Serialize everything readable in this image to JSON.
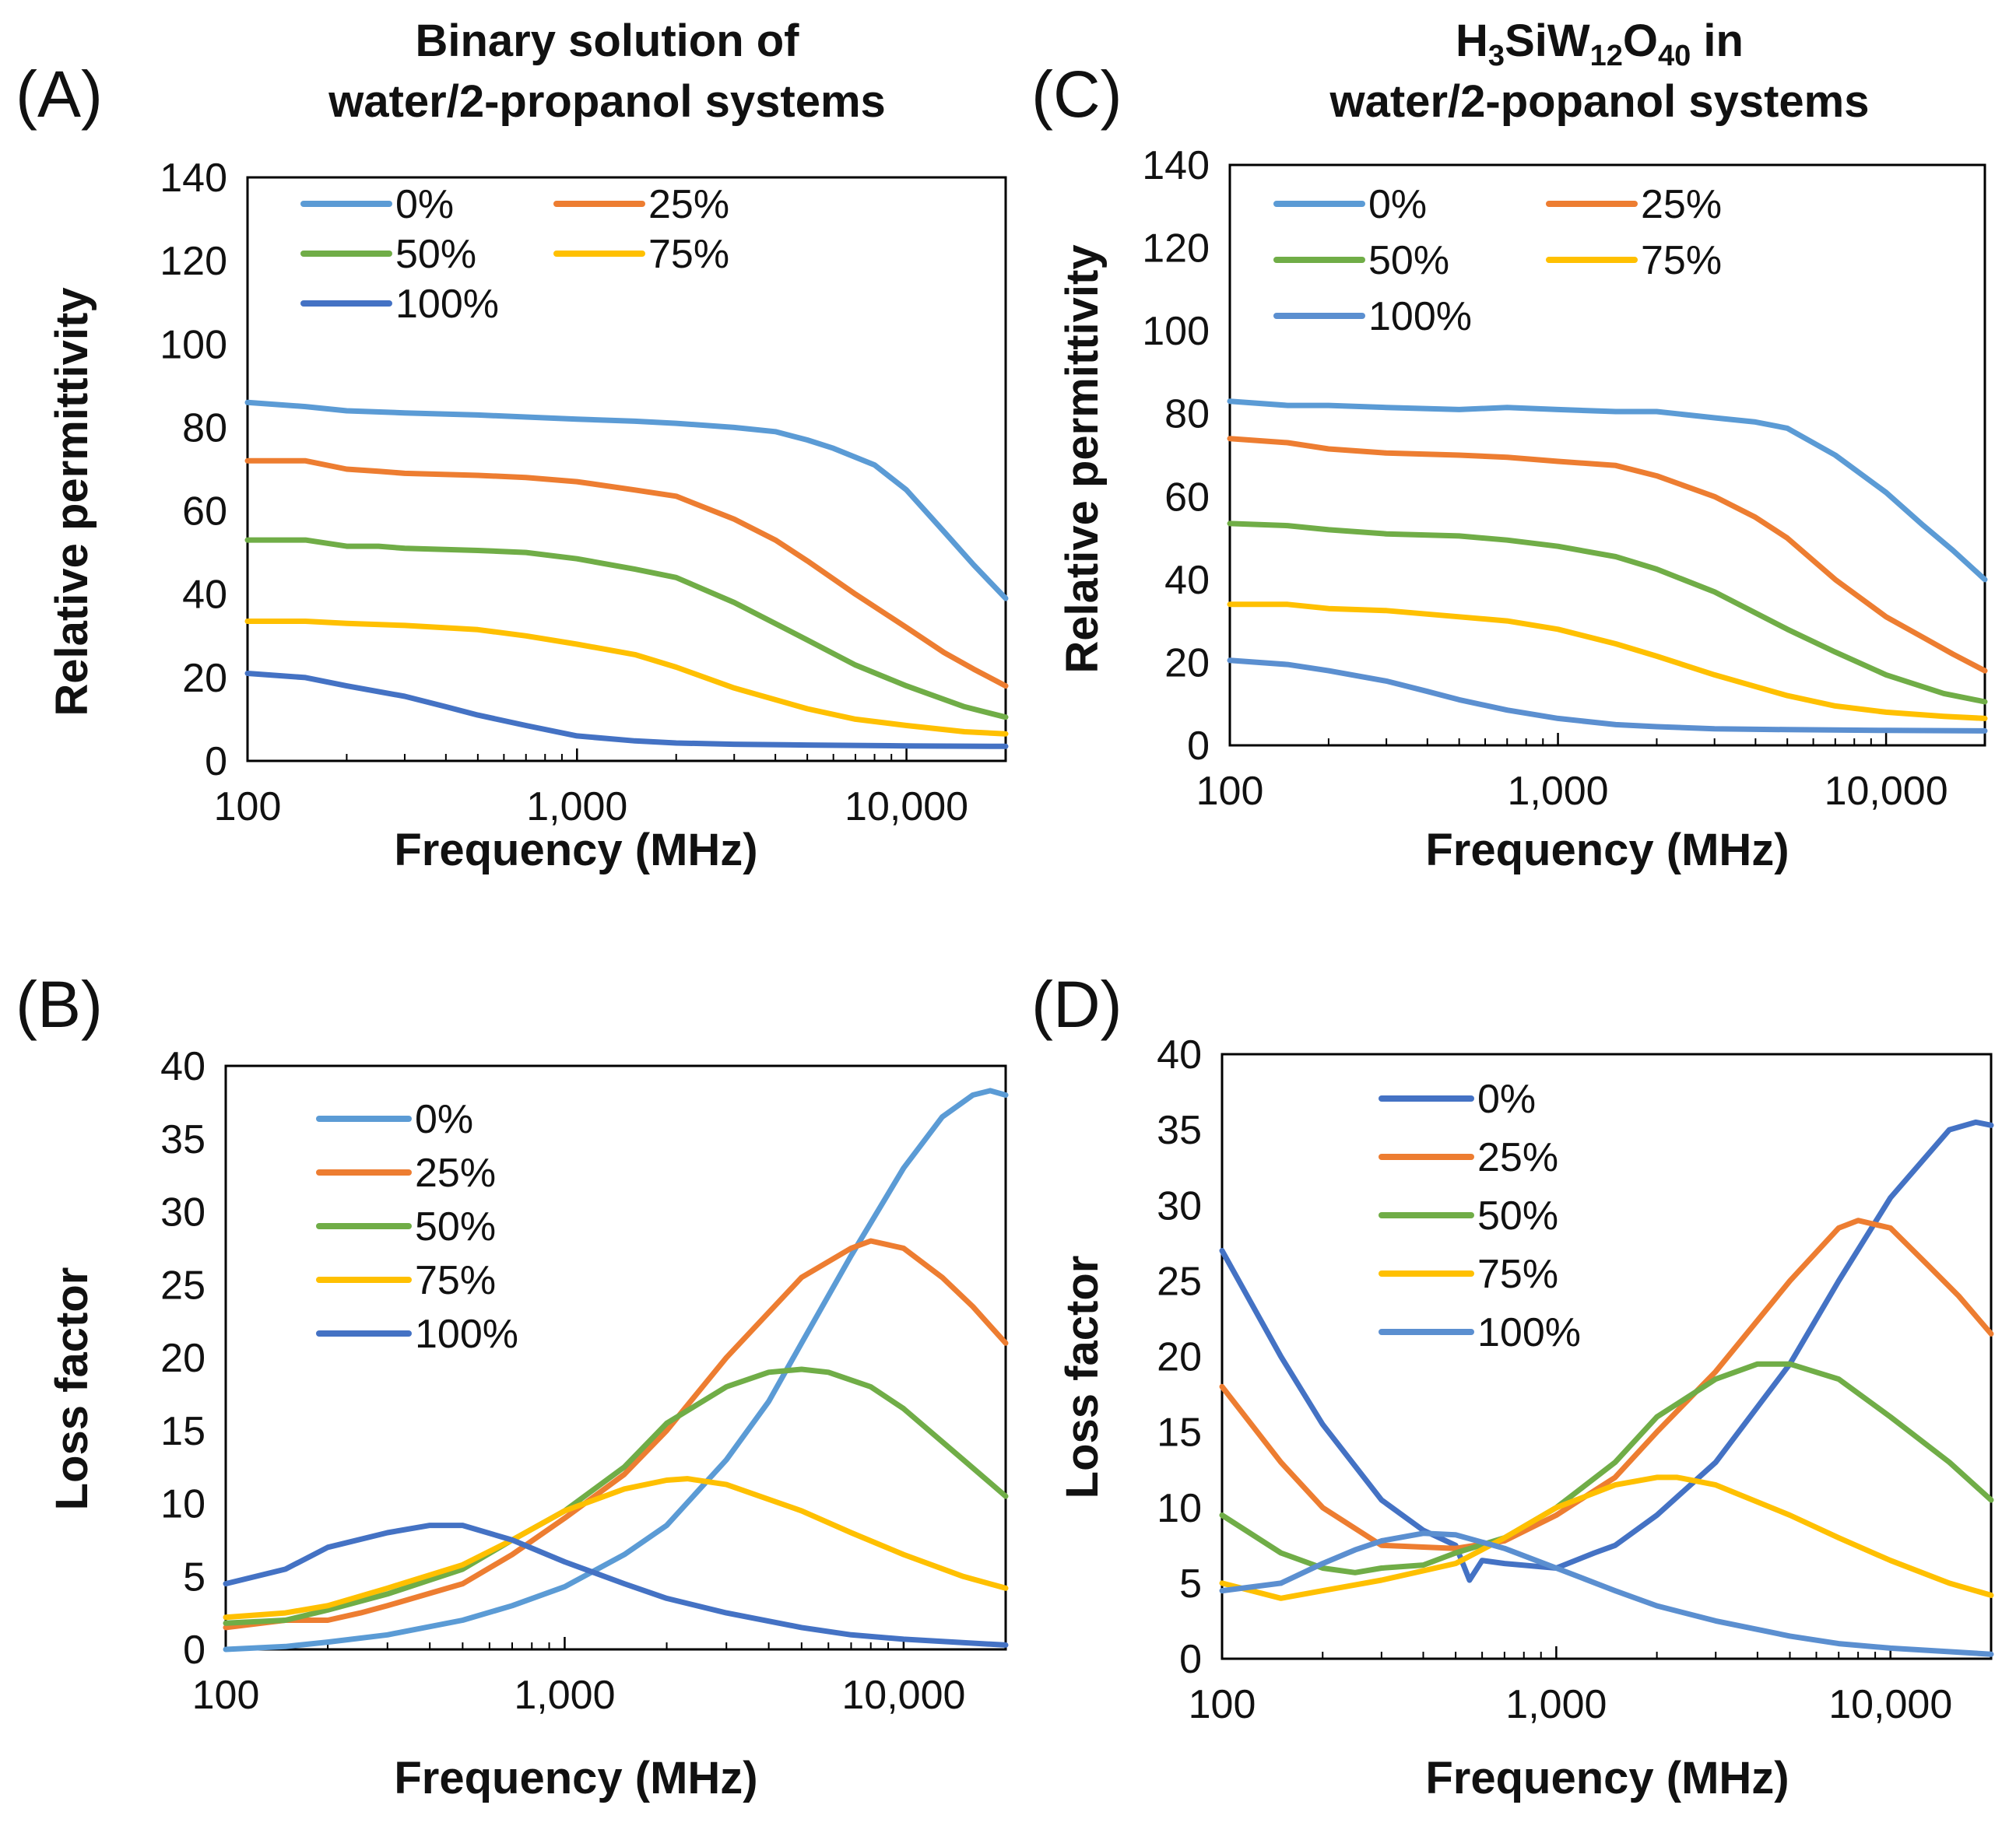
{
  "chart_data": [
    {
      "id": "A",
      "panel_label": "(A)",
      "type": "line",
      "title": [
        "Binary solution of",
        "water/2-propanol systems"
      ],
      "xlabel": "Frequency (MHz)",
      "ylabel": "Relative permittivity",
      "xscale": "log",
      "xlim": [
        100,
        20000
      ],
      "ylim": [
        0,
        140
      ],
      "xticks": [
        100,
        1000,
        10000
      ],
      "xtick_labels": [
        "100",
        "1,000",
        "10,000"
      ],
      "yticks": [
        0,
        20,
        40,
        60,
        80,
        100,
        120,
        140
      ],
      "ytick_labels": [
        "0",
        "20",
        "40",
        "60",
        "80",
        "100",
        "120",
        "140"
      ],
      "legend_position": "top, two columns",
      "series": [
        {
          "name": "0%",
          "color": "#5b9bd5",
          "x": [
            100,
            150,
            200,
            300,
            500,
            700,
            1000,
            1500,
            2000,
            3000,
            4000,
            5000,
            6000,
            8000,
            10000,
            13000,
            16000,
            20000
          ],
          "y": [
            86,
            85,
            84,
            83.5,
            83,
            82.5,
            82,
            81.5,
            81,
            80,
            79,
            77,
            75,
            71,
            65,
            55,
            47,
            39
          ]
        },
        {
          "name": "25%",
          "color": "#ed7d31",
          "x": [
            100,
            150,
            200,
            250,
            300,
            500,
            700,
            1000,
            1500,
            2000,
            3000,
            4000,
            5000,
            7000,
            10000,
            13000,
            16000,
            20000
          ],
          "y": [
            72,
            72,
            70,
            69.5,
            69,
            68.5,
            68,
            67,
            65,
            63.5,
            58,
            53,
            48,
            40,
            32,
            26,
            22,
            18
          ]
        },
        {
          "name": "50%",
          "color": "#70ad47",
          "x": [
            100,
            150,
            200,
            250,
            300,
            500,
            700,
            1000,
            1500,
            2000,
            3000,
            5000,
            7000,
            10000,
            15000,
            20000
          ],
          "y": [
            53,
            53,
            51.5,
            51.5,
            51,
            50.5,
            50,
            48.5,
            46,
            44,
            38,
            29,
            23,
            18,
            13,
            10.5
          ]
        },
        {
          "name": "75%",
          "color": "#ffc000",
          "x": [
            100,
            150,
            200,
            300,
            500,
            700,
            1000,
            1500,
            2000,
            3000,
            5000,
            7000,
            10000,
            15000,
            20000
          ],
          "y": [
            33.5,
            33.5,
            33,
            32.5,
            31.5,
            30,
            28,
            25.5,
            22.5,
            17.5,
            12.5,
            10,
            8.5,
            7,
            6.5
          ]
        },
        {
          "name": "100%",
          "color": "#4472c4",
          "x": [
            100,
            150,
            200,
            300,
            400,
            500,
            700,
            1000,
            1500,
            2000,
            3000,
            5000,
            10000,
            20000
          ],
          "y": [
            21,
            20,
            18,
            15.5,
            13,
            11,
            8.5,
            6,
            4.8,
            4.3,
            4,
            3.8,
            3.6,
            3.5
          ]
        }
      ]
    },
    {
      "id": "C",
      "panel_label": "(C)",
      "type": "line",
      "title": [
        "H3SiW12O40 in",
        "water/2-popanol systems"
      ],
      "title_parts": {
        "h": "H",
        "sub1": "3",
        "si_w": "SiW",
        "sub2": "12",
        "o": "O",
        "sub3": "40",
        "rest": " in"
      },
      "xlabel": "Frequency (MHz)",
      "ylabel": "Relative permittivity",
      "xscale": "log",
      "xlim": [
        100,
        20000
      ],
      "ylim": [
        0,
        140
      ],
      "xticks": [
        100,
        1000,
        10000
      ],
      "xtick_labels": [
        "100",
        "1,000",
        "10,000"
      ],
      "yticks": [
        0,
        20,
        40,
        60,
        80,
        100,
        120,
        140
      ],
      "ytick_labels": [
        "0",
        "20",
        "40",
        "60",
        "80",
        "100",
        "120",
        "140"
      ],
      "legend_position": "top, two columns",
      "series": [
        {
          "name": "0%",
          "color": "#5b9bd5",
          "x": [
            100,
            150,
            200,
            300,
            500,
            700,
            1000,
            1500,
            2000,
            3000,
            4000,
            5000,
            7000,
            10000,
            13000,
            16000,
            20000
          ],
          "y": [
            83,
            82,
            82,
            81.5,
            81,
            81.5,
            81,
            80.5,
            80.5,
            79,
            78,
            76.5,
            70,
            61,
            53,
            47,
            40
          ]
        },
        {
          "name": "25%",
          "color": "#ed7d31",
          "x": [
            100,
            150,
            200,
            300,
            500,
            700,
            1000,
            1500,
            2000,
            3000,
            4000,
            5000,
            7000,
            10000,
            13000,
            16000,
            20000
          ],
          "y": [
            74,
            73,
            71.5,
            70.5,
            70,
            69.5,
            68.5,
            67.5,
            65,
            60,
            55,
            50,
            40,
            31,
            26,
            22,
            18
          ]
        },
        {
          "name": "50%",
          "color": "#70ad47",
          "x": [
            100,
            150,
            200,
            300,
            500,
            700,
            1000,
            1500,
            2000,
            3000,
            5000,
            7000,
            10000,
            15000,
            20000
          ],
          "y": [
            53.5,
            53,
            52,
            51,
            50.5,
            49.5,
            48,
            45.5,
            42.5,
            37,
            28,
            22.5,
            17,
            12.5,
            10.5
          ]
        },
        {
          "name": "75%",
          "color": "#ffc000",
          "x": [
            100,
            150,
            200,
            300,
            500,
            700,
            1000,
            1500,
            2000,
            3000,
            5000,
            7000,
            10000,
            15000,
            20000
          ],
          "y": [
            34,
            34,
            33,
            32.5,
            31,
            30,
            28,
            24.5,
            21.5,
            17,
            12,
            9.5,
            8,
            7,
            6.5
          ]
        },
        {
          "name": "100%",
          "color": "#5b8fd0",
          "x": [
            100,
            150,
            200,
            300,
            400,
            500,
            700,
            1000,
            1500,
            2000,
            3000,
            5000,
            10000,
            20000
          ],
          "y": [
            20.5,
            19.5,
            18,
            15.5,
            13,
            11,
            8.5,
            6.5,
            5,
            4.5,
            4,
            3.8,
            3.6,
            3.5
          ]
        }
      ]
    },
    {
      "id": "B",
      "panel_label": "(B)",
      "type": "line",
      "xlabel": "Frequency (MHz)",
      "ylabel": "Loss factor",
      "xscale": "log",
      "xlim": [
        100,
        20000
      ],
      "ylim": [
        0,
        40
      ],
      "xticks": [
        100,
        1000,
        10000
      ],
      "xtick_labels": [
        "100",
        "1,000",
        "10,000"
      ],
      "yticks": [
        0,
        5,
        10,
        15,
        20,
        25,
        30,
        35,
        40
      ],
      "ytick_labels": [
        "0",
        "5",
        "10",
        "15",
        "20",
        "25",
        "30",
        "35",
        "40"
      ],
      "legend_position": "upper-left, single column",
      "series": [
        {
          "name": "0%",
          "color": "#5b9bd5",
          "x": [
            100,
            150,
            200,
            300,
            500,
            700,
            1000,
            1500,
            2000,
            3000,
            4000,
            5000,
            7000,
            10000,
            13000,
            16000,
            18000,
            20000
          ],
          "y": [
            0,
            0.2,
            0.5,
            1,
            2,
            3,
            4.3,
            6.5,
            8.5,
            13,
            17,
            21,
            27,
            33,
            36.5,
            38,
            38.3,
            38
          ]
        },
        {
          "name": "25%",
          "color": "#ed7d31",
          "x": [
            100,
            150,
            200,
            250,
            300,
            500,
            700,
            1000,
            1500,
            2000,
            3000,
            5000,
            7000,
            8000,
            10000,
            13000,
            16000,
            20000
          ],
          "y": [
            1.5,
            2,
            2,
            2.5,
            3,
            4.5,
            6.5,
            9,
            12,
            15,
            20,
            25.5,
            27.5,
            28,
            27.5,
            25.5,
            23.5,
            21
          ]
        },
        {
          "name": "50%",
          "color": "#70ad47",
          "x": [
            100,
            150,
            200,
            300,
            500,
            700,
            1000,
            1500,
            2000,
            3000,
            4000,
            5000,
            6000,
            8000,
            10000,
            15000,
            20000
          ],
          "y": [
            1.8,
            2,
            2.7,
            3.8,
            5.5,
            7.5,
            9.5,
            12.5,
            15.5,
            18,
            19,
            19.2,
            19,
            18,
            16.5,
            13,
            10.5
          ]
        },
        {
          "name": "75%",
          "color": "#ffc000",
          "x": [
            100,
            150,
            200,
            300,
            500,
            700,
            1000,
            1500,
            2000,
            2300,
            3000,
            5000,
            7000,
            10000,
            15000,
            20000
          ],
          "y": [
            2.2,
            2.5,
            3,
            4.2,
            5.8,
            7.5,
            9.5,
            11,
            11.6,
            11.7,
            11.3,
            9.5,
            8,
            6.5,
            5,
            4.2
          ]
        },
        {
          "name": "100%",
          "color": "#4472c4",
          "x": [
            100,
            150,
            200,
            300,
            400,
            500,
            700,
            1000,
            1500,
            2000,
            3000,
            5000,
            7000,
            10000,
            20000
          ],
          "y": [
            4.5,
            5.5,
            7,
            8,
            8.5,
            8.5,
            7.5,
            6,
            4.5,
            3.5,
            2.5,
            1.5,
            1,
            0.7,
            0.3
          ]
        }
      ]
    },
    {
      "id": "D",
      "panel_label": "(D)",
      "type": "line",
      "xlabel": "Frequency (MHz)",
      "ylabel": "Loss factor",
      "xscale": "log",
      "xlim": [
        100,
        20000
      ],
      "ylim": [
        0,
        40
      ],
      "xticks": [
        100,
        1000,
        10000
      ],
      "xtick_labels": [
        "100",
        "1,000",
        "10,000"
      ],
      "yticks": [
        0,
        5,
        10,
        15,
        20,
        25,
        30,
        35,
        40
      ],
      "ytick_labels": [
        "0",
        "5",
        "10",
        "15",
        "20",
        "25",
        "30",
        "35",
        "40"
      ],
      "legend_position": "upper-center, single column",
      "series": [
        {
          "name": "0%",
          "color": "#4472c4",
          "x": [
            100,
            150,
            200,
            300,
            400,
            500,
            550,
            600,
            700,
            1000,
            1300,
            1500,
            2000,
            3000,
            5000,
            7000,
            10000,
            15000,
            18000,
            20000
          ],
          "y": [
            27,
            20,
            15.5,
            10.5,
            8.5,
            7.5,
            5.2,
            6.5,
            6.3,
            6,
            7,
            7.5,
            9.5,
            13,
            19.5,
            25,
            30.5,
            35,
            35.5,
            35.3
          ]
        },
        {
          "name": "25%",
          "color": "#ed7d31",
          "x": [
            100,
            150,
            200,
            300,
            500,
            700,
            1000,
            1500,
            2000,
            3000,
            5000,
            7000,
            8000,
            10000,
            13000,
            16000,
            20000
          ],
          "y": [
            18,
            13,
            10,
            7.5,
            7.3,
            7.8,
            9.5,
            12,
            15,
            19,
            25,
            28.5,
            29,
            28.5,
            26,
            24,
            21.5
          ]
        },
        {
          "name": "50%",
          "color": "#70ad47",
          "x": [
            100,
            150,
            200,
            250,
            300,
            400,
            500,
            700,
            1000,
            1500,
            2000,
            3000,
            4000,
            5000,
            7000,
            10000,
            15000,
            20000
          ],
          "y": [
            9.5,
            7,
            6,
            5.7,
            6,
            6.2,
            7,
            8,
            10,
            13,
            16,
            18.5,
            19.5,
            19.5,
            18.5,
            16,
            13,
            10.5
          ]
        },
        {
          "name": "75%",
          "color": "#ffc000",
          "x": [
            100,
            150,
            200,
            300,
            500,
            700,
            1000,
            1500,
            2000,
            2300,
            3000,
            5000,
            7000,
            10000,
            15000,
            20000
          ],
          "y": [
            5,
            4,
            4.5,
            5.2,
            6.3,
            8,
            10,
            11.5,
            12,
            12,
            11.5,
            9.5,
            8,
            6.5,
            5,
            4.2
          ]
        },
        {
          "name": "100%",
          "color": "#5b8fd0",
          "x": [
            100,
            150,
            200,
            250,
            300,
            400,
            500,
            700,
            1000,
            1500,
            2000,
            3000,
            5000,
            7000,
            10000,
            20000
          ],
          "y": [
            4.5,
            5,
            6.3,
            7.2,
            7.8,
            8.3,
            8.2,
            7.3,
            6,
            4.5,
            3.5,
            2.5,
            1.5,
            1,
            0.7,
            0.3
          ]
        }
      ]
    }
  ]
}
